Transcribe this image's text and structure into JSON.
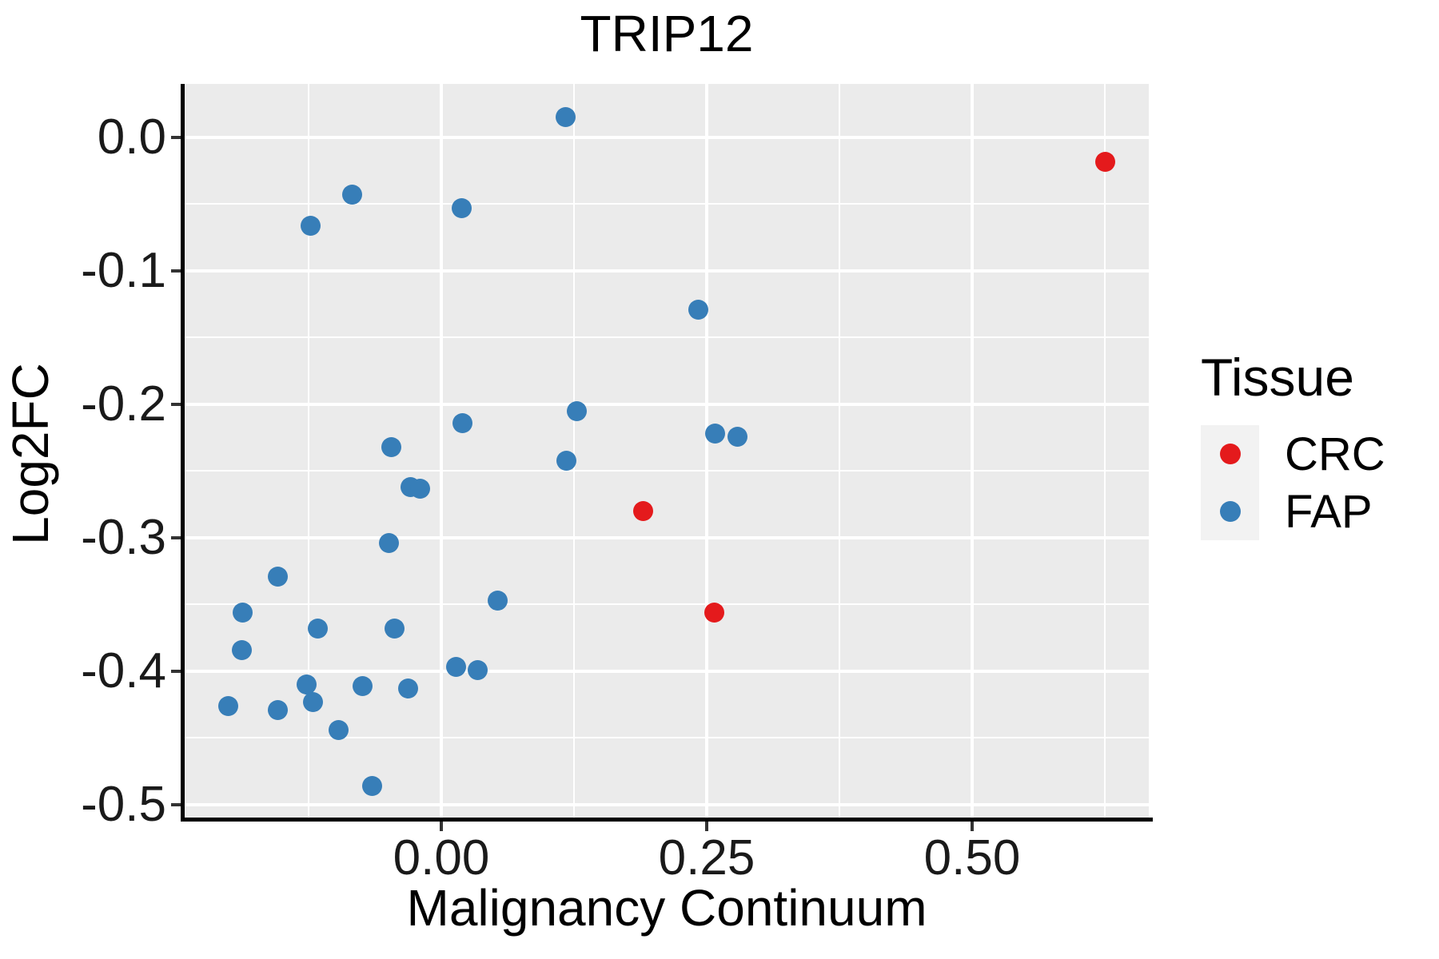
{
  "chart_data": {
    "type": "scatter",
    "title": "TRIP12",
    "xlabel": "Malignancy Continuum",
    "ylabel": "Log2FC",
    "grid": true,
    "panel_background": "#EBEBEB",
    "x_axis": {
      "range": [
        -0.2417,
        0.6664
      ],
      "ticks": [
        {
          "v": 0.0,
          "label": "0.00"
        },
        {
          "v": 0.25,
          "label": "0.25"
        },
        {
          "v": 0.5,
          "label": "0.50"
        }
      ],
      "minor": [
        -0.125,
        0.125,
        0.375,
        0.625
      ]
    },
    "y_axis": {
      "range": [
        -0.5096,
        0.0401
      ],
      "ticks": [
        {
          "v": 0.0,
          "label": "0.0"
        },
        {
          "v": -0.1,
          "label": "-0.1"
        },
        {
          "v": -0.2,
          "label": "-0.2"
        },
        {
          "v": -0.3,
          "label": "-0.3"
        },
        {
          "v": -0.4,
          "label": "-0.4"
        },
        {
          "v": -0.5,
          "label": "-0.5"
        }
      ],
      "minor": [
        -0.05,
        -0.15,
        -0.25,
        -0.35,
        -0.45
      ]
    },
    "legend": {
      "title": "Tissue",
      "position": "right",
      "entries": [
        {
          "label": "CRC",
          "color": "#E41A1C"
        },
        {
          "label": "FAP",
          "color": "#377EB8"
        }
      ]
    },
    "series": [
      {
        "name": "CRC",
        "color": "#E41A1C",
        "points": [
          [
            0.625,
            -0.018
          ],
          [
            0.19,
            -0.28
          ],
          [
            0.257,
            -0.356
          ]
        ]
      },
      {
        "name": "FAP",
        "color": "#377EB8",
        "points": [
          [
            0.117,
            0.015
          ],
          [
            -0.084,
            -0.043
          ],
          [
            0.019,
            -0.053
          ],
          [
            -0.123,
            -0.066
          ],
          [
            0.242,
            -0.129
          ],
          [
            0.128,
            -0.205
          ],
          [
            0.02,
            -0.214
          ],
          [
            0.258,
            -0.222
          ],
          [
            0.279,
            -0.224
          ],
          [
            -0.047,
            -0.232
          ],
          [
            0.118,
            -0.242
          ],
          [
            -0.029,
            -0.262
          ],
          [
            -0.02,
            -0.263
          ],
          [
            -0.049,
            -0.304
          ],
          [
            -0.154,
            -0.329
          ],
          [
            0.053,
            -0.347
          ],
          [
            -0.187,
            -0.356
          ],
          [
            -0.116,
            -0.368
          ],
          [
            -0.044,
            -0.368
          ],
          [
            -0.188,
            -0.384
          ],
          [
            0.014,
            -0.397
          ],
          [
            0.034,
            -0.399
          ],
          [
            -0.127,
            -0.41
          ],
          [
            -0.074,
            -0.411
          ],
          [
            -0.031,
            -0.413
          ],
          [
            -0.121,
            -0.423
          ],
          [
            -0.201,
            -0.426
          ],
          [
            -0.154,
            -0.429
          ],
          [
            -0.097,
            -0.444
          ],
          [
            -0.065,
            -0.486
          ]
        ]
      }
    ]
  }
}
